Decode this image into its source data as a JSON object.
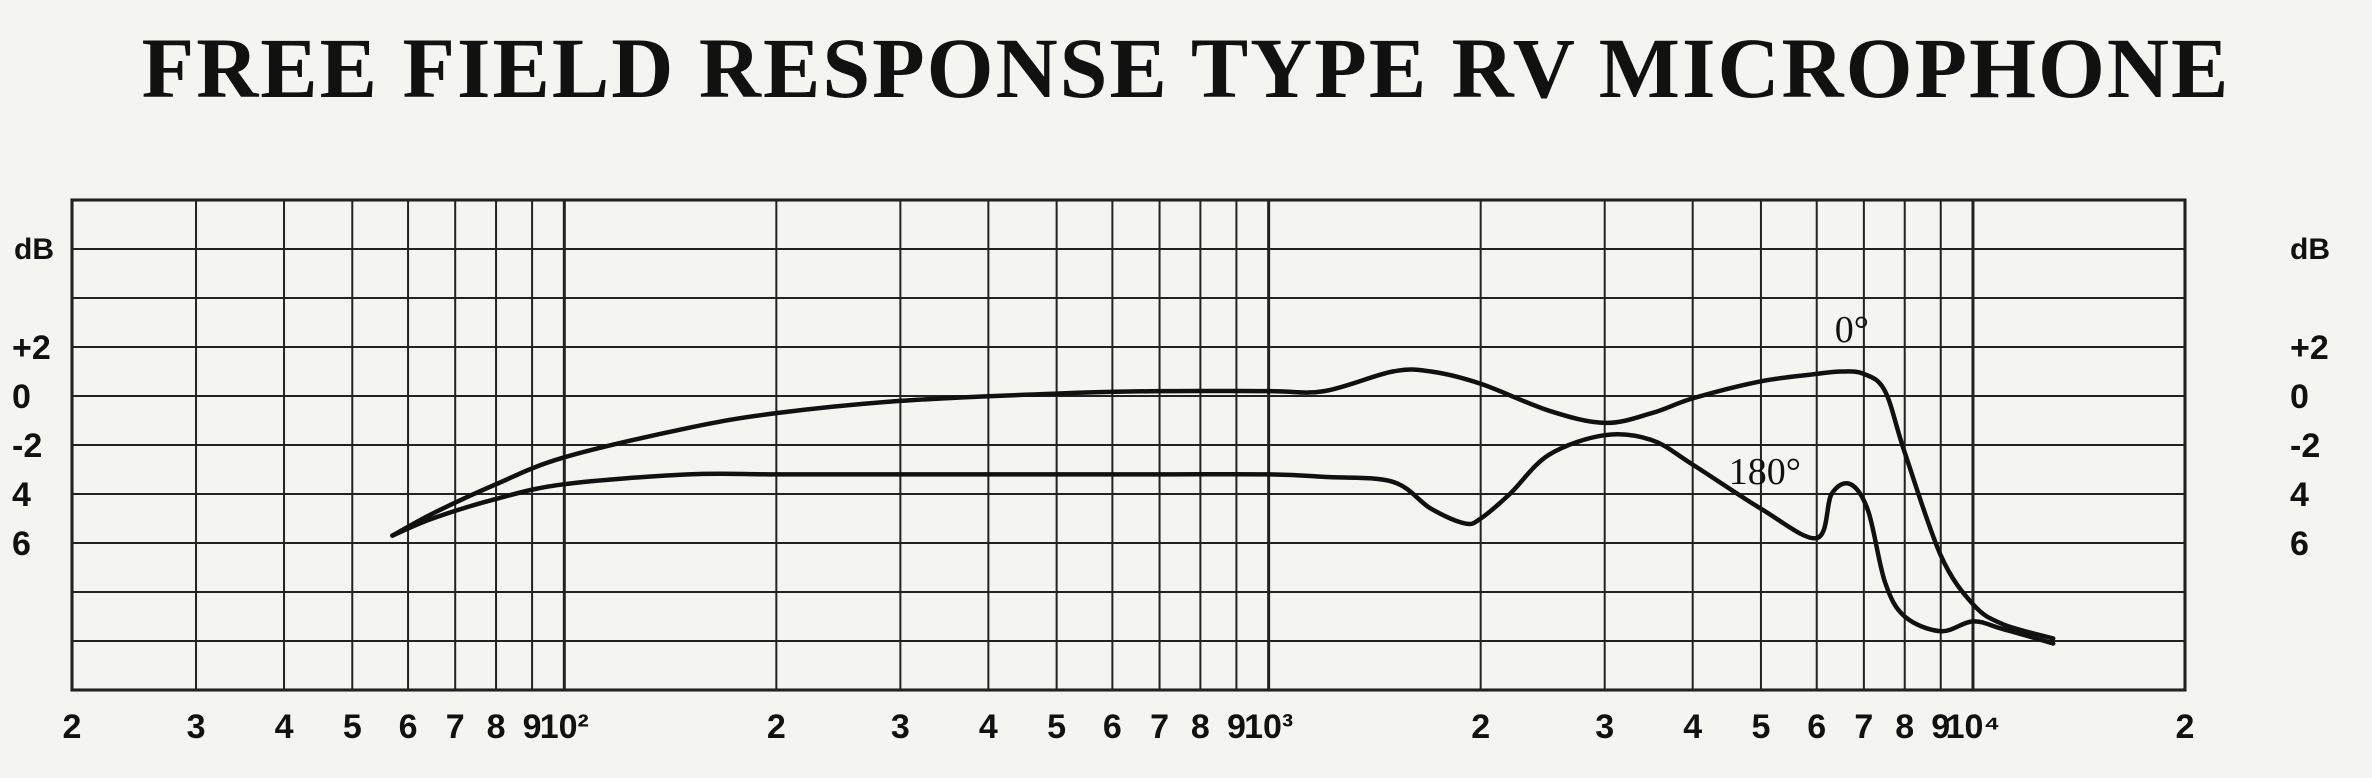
{
  "title": "FREE FIELD RESPONSE TYPE RV MICROPHONE",
  "chart_data": {
    "type": "line",
    "title": "FREE FIELD RESPONSE TYPE RV MICROPHONE",
    "x_scale": "log",
    "xlim": [
      20,
      20000
    ],
    "x_tick_labels": [
      {
        "value": 20,
        "label": "2"
      },
      {
        "value": 30,
        "label": "3"
      },
      {
        "value": 40,
        "label": "4"
      },
      {
        "value": 50,
        "label": "5"
      },
      {
        "value": 60,
        "label": "6"
      },
      {
        "value": 70,
        "label": "7"
      },
      {
        "value": 80,
        "label": "8"
      },
      {
        "value": 90,
        "label": "9"
      },
      {
        "value": 100,
        "label": "10²"
      },
      {
        "value": 200,
        "label": "2"
      },
      {
        "value": 300,
        "label": "3"
      },
      {
        "value": 400,
        "label": "4"
      },
      {
        "value": 500,
        "label": "5"
      },
      {
        "value": 600,
        "label": "6"
      },
      {
        "value": 700,
        "label": "7"
      },
      {
        "value": 800,
        "label": "8"
      },
      {
        "value": 900,
        "label": "9"
      },
      {
        "value": 1000,
        "label": "10³"
      },
      {
        "value": 2000,
        "label": "2"
      },
      {
        "value": 3000,
        "label": "3"
      },
      {
        "value": 4000,
        "label": "4"
      },
      {
        "value": 5000,
        "label": "5"
      },
      {
        "value": 6000,
        "label": "6"
      },
      {
        "value": 7000,
        "label": "7"
      },
      {
        "value": 8000,
        "label": "8"
      },
      {
        "value": 9000,
        "label": "9"
      },
      {
        "value": 10000,
        "label": "10⁴"
      },
      {
        "value": 20000,
        "label": "2"
      }
    ],
    "ylabel": "dB",
    "ylim": [
      -12,
      8
    ],
    "y_tick_labels": [
      {
        "value": 2,
        "label": "+2"
      },
      {
        "value": 0,
        "label": "0"
      },
      {
        "value": -2,
        "label": "-2"
      },
      {
        "value": -4,
        "label": "4"
      },
      {
        "value": -6,
        "label": "6"
      }
    ],
    "y_gridlines": [
      8,
      6,
      4,
      2,
      0,
      -2,
      -4,
      -6,
      -8,
      -10,
      -12
    ],
    "grid": true,
    "series": [
      {
        "name": "0°",
        "x": [
          57,
          65,
          80,
          100,
          150,
          200,
          300,
          500,
          700,
          1000,
          1200,
          1500,
          1700,
          2000,
          2500,
          3000,
          3500,
          4000,
          5000,
          6000,
          6500,
          7000,
          7500,
          8000,
          9000,
          10000,
          11000,
          13000
        ],
        "y": [
          -5.7,
          -4.8,
          -3.6,
          -2.5,
          -1.3,
          -0.7,
          -0.2,
          0.1,
          0.2,
          0.2,
          0.2,
          1.0,
          1.0,
          0.5,
          -0.6,
          -1.1,
          -0.7,
          -0.1,
          0.6,
          0.9,
          1.0,
          0.9,
          0.2,
          -2.3,
          -6.5,
          -8.5,
          -9.3,
          -9.9
        ]
      },
      {
        "name": "180°",
        "x": [
          57,
          65,
          80,
          100,
          150,
          200,
          300,
          500,
          700,
          1000,
          1200,
          1500,
          1700,
          1900,
          2000,
          2200,
          2500,
          3000,
          3500,
          4000,
          5000,
          6000,
          6300,
          6700,
          7100,
          7500,
          8000,
          9000,
          10000,
          11000,
          13000
        ],
        "y": [
          -5.7,
          -5.0,
          -4.2,
          -3.6,
          -3.2,
          -3.2,
          -3.2,
          -3.2,
          -3.2,
          -3.2,
          -3.3,
          -3.5,
          -4.6,
          -5.2,
          -5.0,
          -4.0,
          -2.4,
          -1.6,
          -1.8,
          -2.8,
          -4.6,
          -5.8,
          -4.0,
          -3.6,
          -4.7,
          -7.6,
          -9.0,
          -9.6,
          -9.2,
          -9.5,
          -10.1
        ]
      }
    ]
  }
}
